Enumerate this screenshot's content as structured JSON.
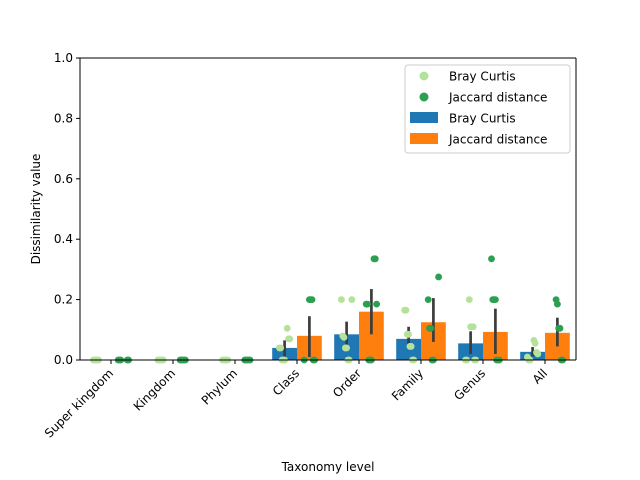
{
  "chart_data": {
    "type": "bar",
    "xlabel": "Taxonomy level",
    "ylabel": "Dissimilarity value",
    "ylim": [
      0,
      1.0
    ],
    "yticks": [
      "0.0",
      "0.2",
      "0.4",
      "0.6",
      "0.8",
      "1.0"
    ],
    "categories": [
      "Super kingdom",
      "Kingdom",
      "Phylum",
      "Class",
      "Order",
      "Family",
      "Genus",
      "All"
    ],
    "legend_position": "top-right",
    "series": [
      {
        "name": "Bray Curtis",
        "color": "#1f77b4",
        "values": [
          0.0,
          0.0,
          0.0,
          0.04,
          0.085,
          0.07,
          0.055,
          0.027
        ],
        "ci": [
          [
            0,
            0
          ],
          [
            0,
            0
          ],
          [
            0,
            0
          ],
          [
            0.01,
            0.065
          ],
          [
            0.045,
            0.127
          ],
          [
            0.038,
            0.11
          ],
          [
            0.02,
            0.095
          ],
          [
            0.012,
            0.043
          ]
        ],
        "points": [
          [
            0,
            0,
            0,
            0,
            0
          ],
          [
            0,
            0,
            0,
            0,
            0
          ],
          [
            0,
            0,
            0,
            0,
            0
          ],
          [
            0.105,
            0.07,
            0.07,
            0.04,
            0.04,
            0.0,
            0.0,
            0.0
          ],
          [
            0.2,
            0.2,
            0.08,
            0.075,
            0.04,
            0.04,
            0.0,
            0.0
          ],
          [
            0.165,
            0.165,
            0.085,
            0.085,
            0.045,
            0.045,
            0.0,
            0.0
          ],
          [
            0.2,
            0.11,
            0.11,
            0.11,
            0.0,
            0.0,
            0.0,
            0.0
          ],
          [
            0.065,
            0.055,
            0.025,
            0.02,
            0.01,
            0.0,
            0.0
          ]
        ]
      },
      {
        "name": "Jaccard distance",
        "color": "#ff7f0e",
        "values": [
          0.0,
          0.0,
          0.0,
          0.08,
          0.16,
          0.125,
          0.093,
          0.09
        ],
        "ci": [
          [
            0,
            0
          ],
          [
            0,
            0
          ],
          [
            0,
            0
          ],
          [
            0.01,
            0.145
          ],
          [
            0.085,
            0.235
          ],
          [
            0.06,
            0.205
          ],
          [
            0.02,
            0.17
          ],
          [
            0.045,
            0.14
          ]
        ],
        "points": [
          [
            0,
            0,
            0,
            0,
            0
          ],
          [
            0,
            0,
            0,
            0,
            0
          ],
          [
            0,
            0,
            0,
            0,
            0
          ],
          [
            0.2,
            0.2,
            0.2,
            0.0,
            0.0,
            0.0
          ],
          [
            0.335,
            0.335,
            0.185,
            0.185,
            0.185,
            0.0,
            0.0,
            0.0
          ],
          [
            0.275,
            0.2,
            0.105,
            0.105,
            0.0,
            0.0
          ],
          [
            0.335,
            0.2,
            0.2,
            0.2,
            0.0,
            0.0,
            0.0
          ],
          [
            0.2,
            0.185,
            0.105,
            0.105,
            0.0,
            0.0
          ]
        ]
      }
    ],
    "point_series": [
      {
        "name": "Bray Curtis",
        "color": "#b5e29a"
      },
      {
        "name": "Jaccard distance",
        "color": "#2ca050"
      }
    ],
    "ci_color": "#3c3c3c"
  }
}
